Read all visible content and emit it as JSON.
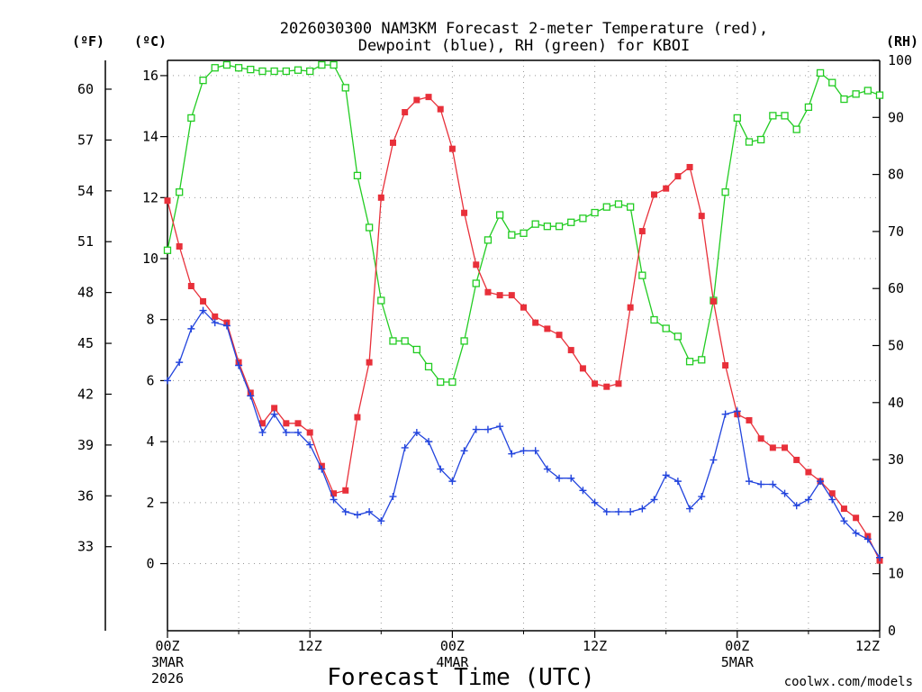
{
  "title_line1": "2026030300 NAM3KM Forecast 2-meter Temperature (red),",
  "title_line2": "Dewpoint (blue), RH (green) for KBOI",
  "unit_f": "(ºF)",
  "unit_c": "(ºC)",
  "unit_rh": "(RH)",
  "xlabel": "Forecast Time (UTC)",
  "credit": "coolwx.com/models",
  "colors": {
    "temp": "#e8303a",
    "dewpoint": "#2244dd",
    "rh": "#22cc22",
    "grid": "#999999",
    "credit": "#dd2222"
  },
  "chart_data": {
    "type": "line",
    "x_hours_range": [
      0,
      60
    ],
    "ylim_c": [
      -2.2,
      16.5
    ],
    "ylim_rh": [
      0,
      100
    ],
    "ylim_f": [
      28.04,
      61.7
    ],
    "c_ticks": [
      0,
      2,
      4,
      6,
      8,
      10,
      12,
      14,
      16
    ],
    "f_ticks": [
      33,
      36,
      39,
      42,
      45,
      48,
      51,
      54,
      57,
      60
    ],
    "rh_ticks": [
      0,
      10,
      20,
      30,
      40,
      50,
      60,
      70,
      80,
      90,
      100
    ],
    "x_ticks": [
      {
        "hour": 0,
        "label": "00Z",
        "date": "3MAR",
        "year": "2026"
      },
      {
        "hour": 12,
        "label": "12Z",
        "date": "",
        "year": ""
      },
      {
        "hour": 24,
        "label": "00Z",
        "date": "4MAR",
        "year": ""
      },
      {
        "hour": 36,
        "label": "12Z",
        "date": "",
        "year": ""
      },
      {
        "hour": 48,
        "label": "00Z",
        "date": "5MAR",
        "year": ""
      },
      {
        "hour": 60,
        "label": "12Z",
        "date": "",
        "year": ""
      }
    ],
    "hours": [
      0,
      1,
      2,
      3,
      4,
      5,
      6,
      7,
      8,
      9,
      10,
      11,
      12,
      13,
      14,
      15,
      16,
      17,
      18,
      19,
      20,
      21,
      22,
      23,
      24,
      25,
      26,
      27,
      28,
      29,
      30,
      31,
      32,
      33,
      34,
      35,
      36,
      37,
      38,
      39,
      40,
      41,
      42,
      43,
      44,
      45,
      46,
      47,
      48,
      49,
      50,
      51,
      52,
      53,
      54,
      55,
      56,
      57,
      58,
      59,
      60
    ],
    "series": [
      {
        "name": "2-meter Temperature (ºC)",
        "axis": "c",
        "color": "#e8303a",
        "marker": "filled-square",
        "values": [
          11.9,
          10.4,
          9.1,
          8.6,
          8.1,
          7.9,
          6.6,
          5.6,
          4.6,
          5.1,
          4.6,
          4.6,
          4.3,
          3.2,
          2.3,
          2.4,
          4.8,
          6.6,
          12.0,
          13.8,
          14.8,
          15.2,
          15.3,
          14.9,
          13.6,
          11.5,
          9.8,
          8.9,
          8.8,
          8.8,
          8.4,
          7.9,
          7.7,
          7.5,
          7.0,
          6.4,
          5.9,
          5.8,
          5.9,
          8.4,
          10.9,
          12.1,
          12.3,
          12.7,
          13.0,
          11.4,
          8.6,
          6.5,
          4.9,
          4.7,
          4.1,
          3.8,
          3.8,
          3.4,
          3.0,
          2.7,
          2.3,
          1.8,
          1.5,
          0.9,
          0.1
        ]
      },
      {
        "name": "Dewpoint (ºC)",
        "axis": "c",
        "color": "#2244dd",
        "marker": "plus",
        "values": [
          6.0,
          6.6,
          7.7,
          8.3,
          7.9,
          7.8,
          6.5,
          5.5,
          4.3,
          4.9,
          4.3,
          4.3,
          3.9,
          3.1,
          2.1,
          1.7,
          1.6,
          1.7,
          1.4,
          2.2,
          3.8,
          4.3,
          4.0,
          3.1,
          2.7,
          3.7,
          4.4,
          4.4,
          4.5,
          3.6,
          3.7,
          3.7,
          3.1,
          2.8,
          2.8,
          2.4,
          2.0,
          1.7,
          1.7,
          1.7,
          1.8,
          2.1,
          2.9,
          2.7,
          1.8,
          2.2,
          3.4,
          4.9,
          5.0,
          2.7,
          2.6,
          2.6,
          2.3,
          1.9,
          2.1,
          2.7,
          2.1,
          1.4,
          1.0,
          0.8,
          0.2
        ]
      },
      {
        "name": "RH (%)",
        "axis": "rh",
        "color": "#22cc22",
        "marker": "open-square",
        "values": [
          66.7,
          76.9,
          89.9,
          96.5,
          98.7,
          99.2,
          98.7,
          98.4,
          98.1,
          98.1,
          98.1,
          98.3,
          98.1,
          99.2,
          99.2,
          95.2,
          79.8,
          70.7,
          57.9,
          50.8,
          50.8,
          49.3,
          46.3,
          43.6,
          43.6,
          50.8,
          60.9,
          68.5,
          72.9,
          69.4,
          69.7,
          71.3,
          70.9,
          70.9,
          71.6,
          72.3,
          73.3,
          74.3,
          74.8,
          74.3,
          62.3,
          54.5,
          53.0,
          51.6,
          47.2,
          47.5,
          57.9,
          76.9,
          89.9,
          85.7,
          86.1,
          90.3,
          90.3,
          87.9,
          91.8,
          97.8,
          96.1,
          93.2,
          94.1,
          94.7,
          93.9
        ]
      }
    ]
  }
}
